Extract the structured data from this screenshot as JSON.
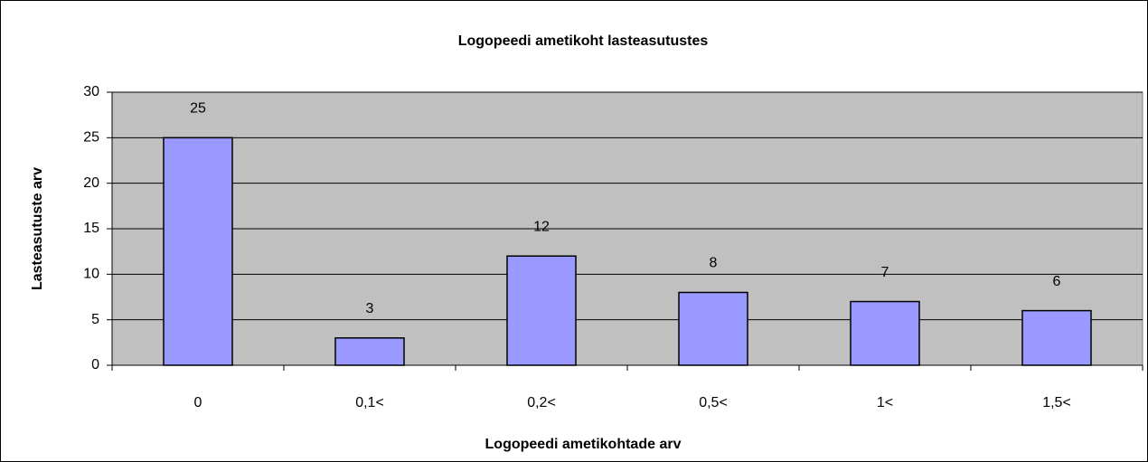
{
  "chart_data": {
    "type": "bar",
    "title": "Logopeedi ametikoht lasteasutustes",
    "x_label": "Logopeedi ametikohtade arv",
    "y_label": "Lasteasutuste arv",
    "categories": [
      "0",
      "0,1<",
      "0,2<",
      "0,5<",
      "1<",
      "1,5<"
    ],
    "values": [
      25,
      3,
      12,
      8,
      7,
      6
    ],
    "color": "#9999ff",
    "ylim": [
      0,
      30
    ],
    "yticks": [
      0,
      5,
      10,
      15,
      20,
      25,
      30
    ],
    "grid": true
  }
}
